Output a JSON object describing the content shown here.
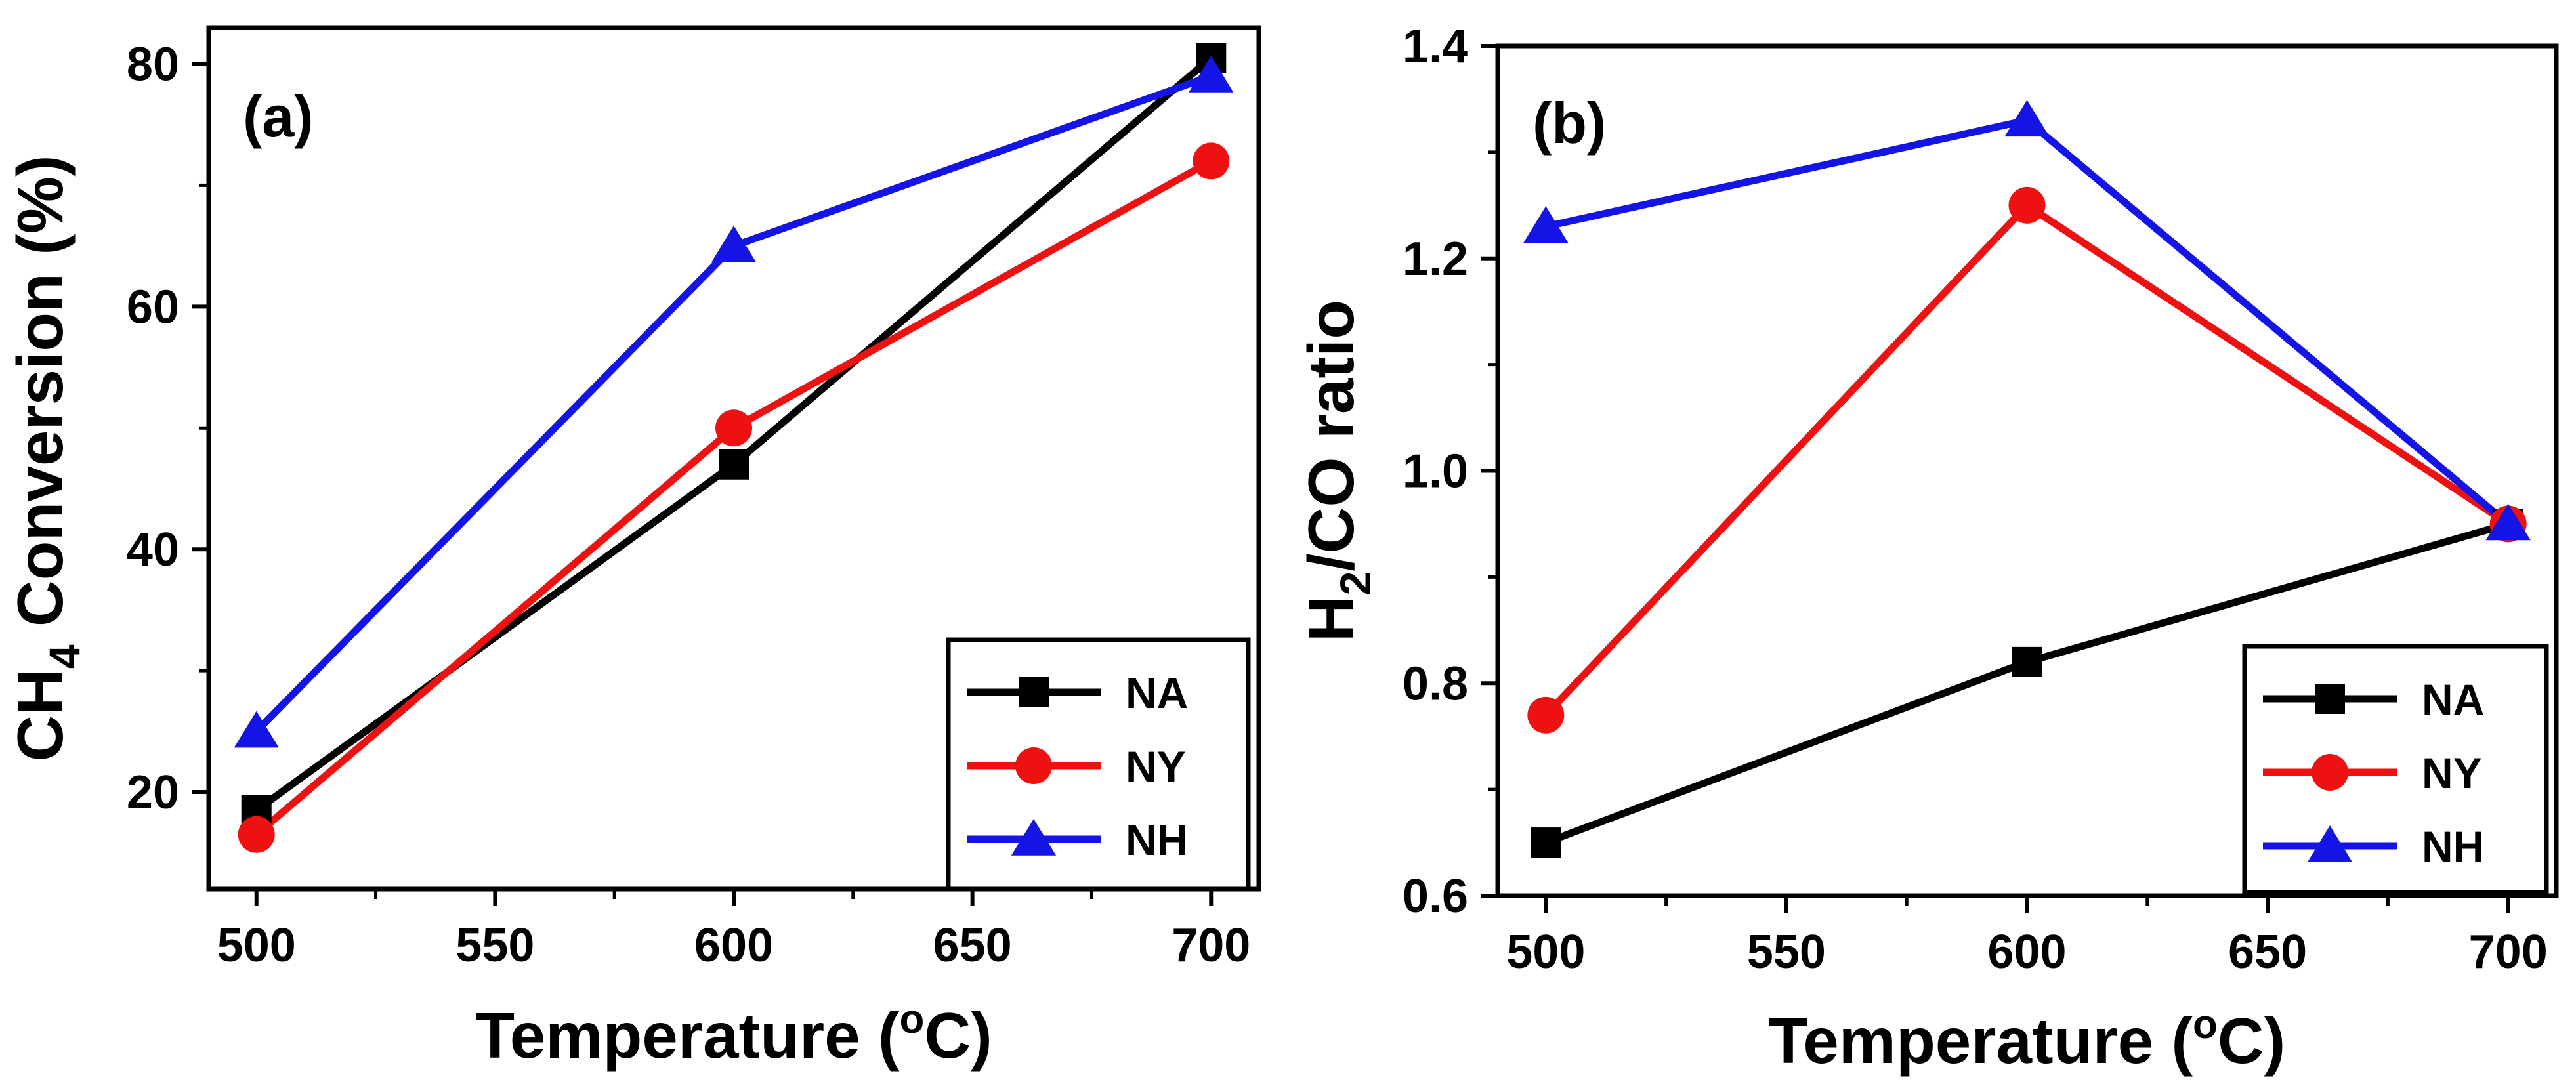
{
  "chart_data": [
    {
      "type": "line",
      "panel_label": "(a)",
      "xlabel": "Temperature (",
      "xlabel_degree": "o",
      "xlabel_unit": "C)",
      "ylabel_main": "CH",
      "ylabel_sub": "4",
      "ylabel_rest": " Conversion (%)",
      "xlim": [
        490,
        710
      ],
      "ylim": [
        12,
        83
      ],
      "x_ticks": [
        500,
        550,
        600,
        650,
        700
      ],
      "x_tick_labels": [
        "500",
        "550",
        "600",
        "650",
        "700"
      ],
      "y_ticks": [
        20,
        40,
        60,
        80
      ],
      "y_tick_labels": [
        "20",
        "40",
        "60",
        "80"
      ],
      "legend_position": "bottom-right",
      "series": [
        {
          "name": "NA",
          "color": "#000000",
          "marker": "square",
          "x": [
            500,
            600,
            700
          ],
          "values": [
            18.5,
            47,
            80.5
          ]
        },
        {
          "name": "NY",
          "color": "#ee1111",
          "marker": "circle",
          "x": [
            500,
            600,
            700
          ],
          "values": [
            16.5,
            50,
            72
          ]
        },
        {
          "name": "NH",
          "color": "#1414e6",
          "marker": "triangle",
          "x": [
            500,
            600,
            700
          ],
          "values": [
            25,
            65,
            79
          ]
        }
      ]
    },
    {
      "type": "line",
      "panel_label": "(b)",
      "xlabel": "Temperature (",
      "xlabel_degree": "o",
      "xlabel_unit": "C)",
      "ylabel_main": "H",
      "ylabel_sub": "2",
      "ylabel_rest": "/CO ratio",
      "xlim": [
        490,
        710
      ],
      "ylim": [
        0.6,
        1.4
      ],
      "x_ticks": [
        500,
        550,
        600,
        650,
        700
      ],
      "x_tick_labels": [
        "500",
        "550",
        "600",
        "650",
        "700"
      ],
      "y_ticks": [
        0.6,
        0.8,
        1.0,
        1.2,
        1.4
      ],
      "y_tick_labels": [
        "0.6",
        "0.8",
        "1.0",
        "1.2",
        "1.4"
      ],
      "legend_position": "bottom-right",
      "series": [
        {
          "name": "NA",
          "color": "#000000",
          "marker": "square",
          "x": [
            500,
            600,
            700
          ],
          "values": [
            0.65,
            0.82,
            0.95
          ]
        },
        {
          "name": "NY",
          "color": "#ee1111",
          "marker": "circle",
          "x": [
            500,
            600,
            700
          ],
          "values": [
            0.77,
            1.25,
            0.95
          ]
        },
        {
          "name": "NH",
          "color": "#1414e6",
          "marker": "triangle",
          "x": [
            500,
            600,
            700
          ],
          "values": [
            1.23,
            1.33,
            0.95
          ]
        }
      ]
    }
  ]
}
